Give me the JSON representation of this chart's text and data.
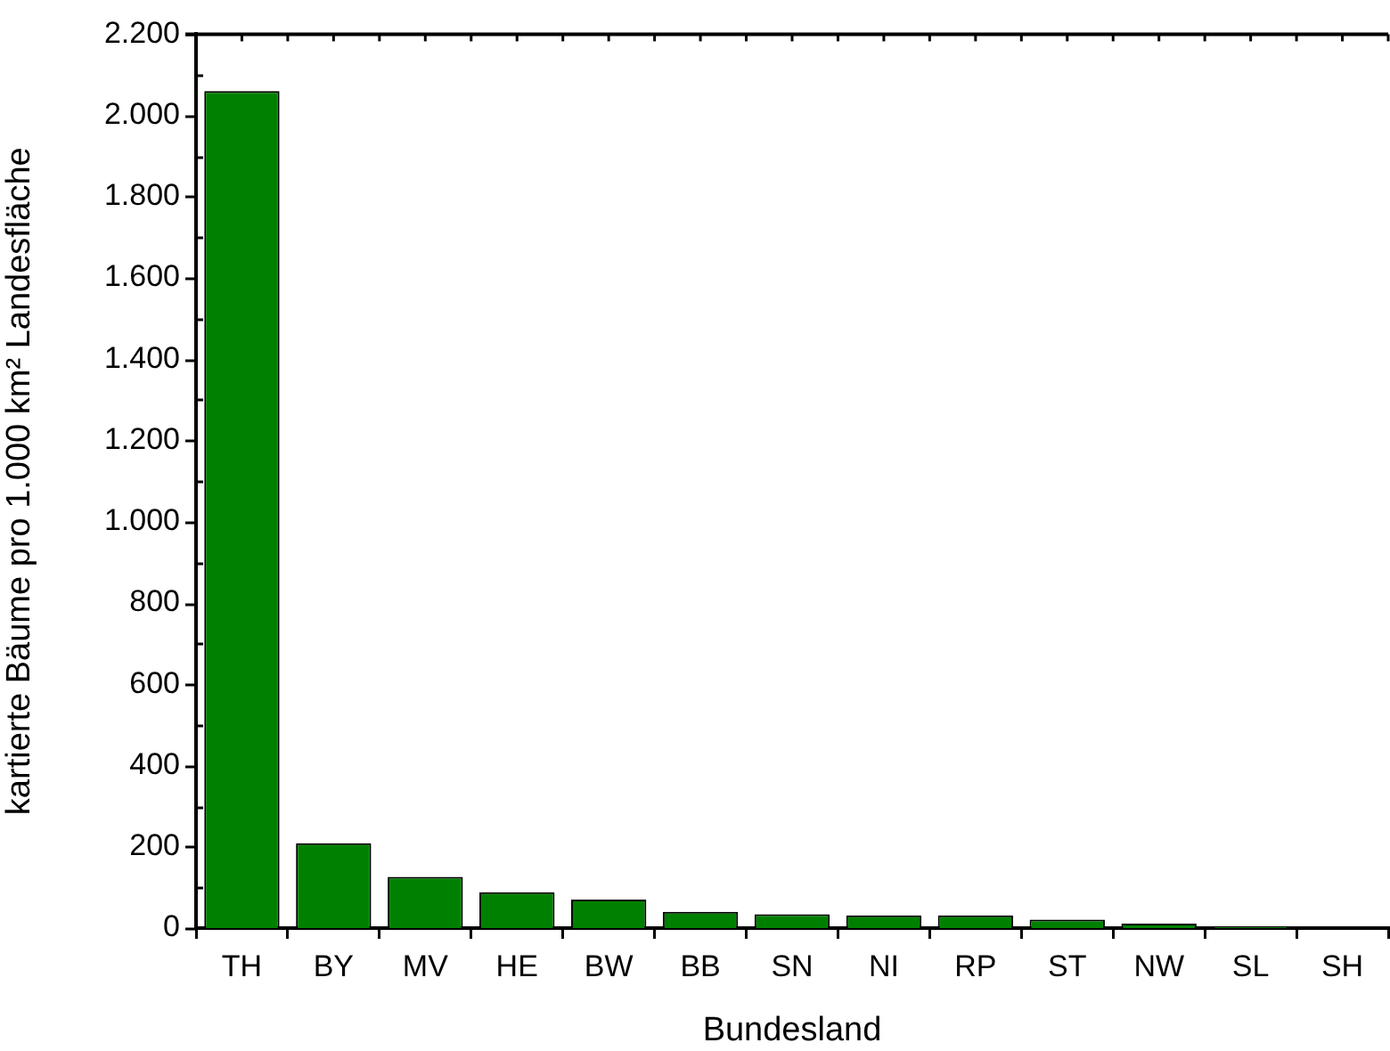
{
  "chart_data": {
    "type": "bar",
    "xlabel": "Bundesland",
    "ylabel": "kartierte Bäume pro 1.000 km² Landesfläche",
    "categories": [
      "TH",
      "BY",
      "MV",
      "HE",
      "BW",
      "BB",
      "SN",
      "NI",
      "RP",
      "ST",
      "NW",
      "SL",
      "SH"
    ],
    "values": [
      2060,
      209,
      126,
      88,
      70,
      40,
      34,
      31,
      31,
      21,
      11,
      4,
      1
    ],
    "color": "#008000",
    "ylim": [
      0,
      2200
    ],
    "yticks": [
      0,
      {
        "value": 100,
        "label": null
      },
      200,
      {
        "value": 300,
        "label": null
      },
      400,
      {
        "value": 500,
        "label": null
      },
      600,
      {
        "value": 700,
        "label": null
      },
      800,
      {
        "value": 900,
        "label": null
      },
      {
        "value": 1000,
        "label": "1.000"
      },
      {
        "value": 1100,
        "label": null
      },
      {
        "value": 1200,
        "label": "1.200"
      },
      {
        "value": 1300,
        "label": null
      },
      {
        "value": 1400,
        "label": "1.400"
      },
      {
        "value": 1500,
        "label": null
      },
      {
        "value": 1600,
        "label": "1.600"
      },
      {
        "value": 1700,
        "label": null
      },
      {
        "value": 1800,
        "label": "1.800"
      },
      {
        "value": 1900,
        "label": null
      },
      {
        "value": 2000,
        "label": "2.000"
      },
      {
        "value": 2100,
        "label": null
      },
      {
        "value": 2200,
        "label": "2.200"
      }
    ],
    "grid": false,
    "legend": false
  }
}
